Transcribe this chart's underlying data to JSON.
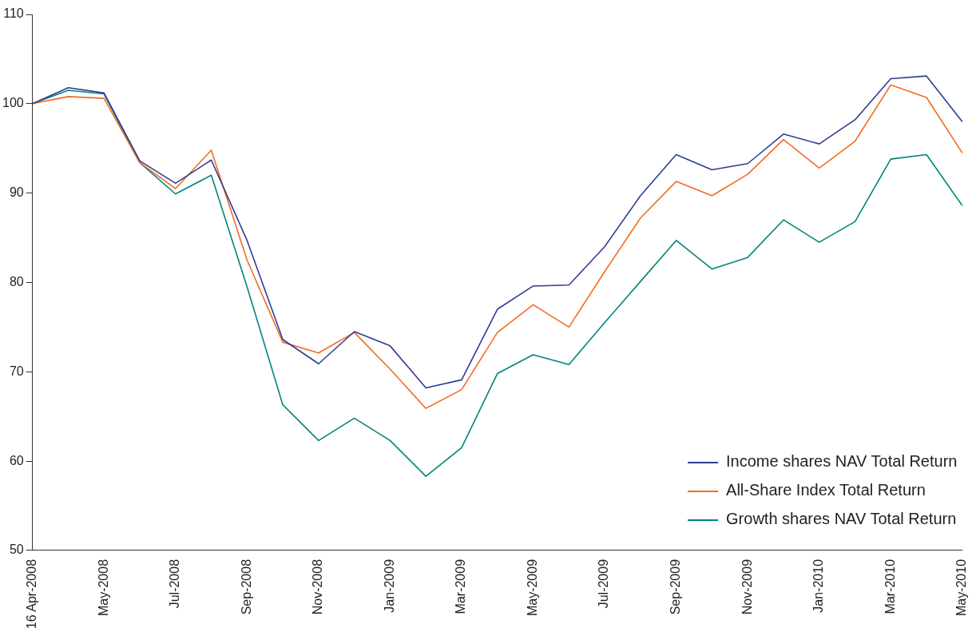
{
  "chart_data": {
    "type": "line",
    "categories": [
      "16 Apr-2008",
      null,
      "May-2008",
      null,
      "Jul-2008",
      null,
      "Sep-2008",
      null,
      "Nov-2008",
      null,
      "Jan-2009",
      null,
      "Mar-2009",
      null,
      "May-2009",
      null,
      "Jul-2009",
      null,
      "Sep-2009",
      null,
      "Nov-2009",
      null,
      "Jan-2010",
      null,
      "Mar-2010",
      null,
      "May-2010"
    ],
    "series": [
      {
        "name": "Income shares NAV Total Return",
        "color": "#2e3c94",
        "values": [
          100,
          101.8,
          101.2,
          93.6,
          91.1,
          93.7,
          84.7,
          73.6,
          70.9,
          74.5,
          72.9,
          68.2,
          69.1,
          77,
          79.6,
          79.7,
          84,
          89.7,
          94.3,
          92.6,
          93.3,
          96.6,
          95.5,
          98.2,
          102.8,
          103.1,
          98
        ]
      },
      {
        "name": "All-Share Index Total Return",
        "color": "#f26b21",
        "values": [
          100,
          100.8,
          100.6,
          93.4,
          90.5,
          94.8,
          82.5,
          73.3,
          72.1,
          74.4,
          70.3,
          65.9,
          68,
          74.4,
          77.5,
          75,
          81.2,
          87.2,
          91.3,
          89.7,
          92.1,
          96,
          92.8,
          95.8,
          102.1,
          100.7,
          94.5
        ]
      },
      {
        "name": "Growth shares NAV Total Return",
        "color": "#00857a",
        "values": [
          100,
          101.5,
          101.1,
          93.4,
          89.9,
          92,
          79.5,
          66.3,
          62.3,
          64.8,
          62.3,
          58.3,
          61.5,
          69.8,
          71.9,
          70.8,
          75.5,
          80.1,
          84.7,
          81.5,
          82.8,
          87,
          84.5,
          86.8,
          93.8,
          94.3,
          88.6
        ]
      }
    ],
    "ylim": [
      50,
      110
    ],
    "yticks": [
      50,
      60,
      70,
      80,
      90,
      100,
      110
    ],
    "grid": false,
    "legend": "bottom right",
    "marker": "none",
    "line_style": "solid"
  }
}
